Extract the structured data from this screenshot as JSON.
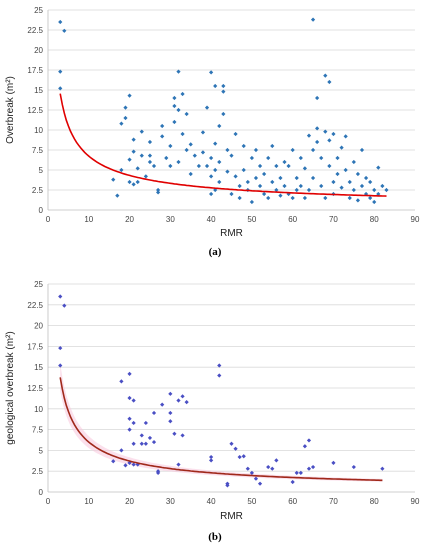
{
  "chart_data": [
    {
      "type": "scatter",
      "panel_label": "(a)",
      "xlabel": "RMR",
      "ylabel": "Overbreak (m²)",
      "xlim": [
        0,
        90
      ],
      "ylim": [
        0,
        25
      ],
      "xticks": [
        0,
        10,
        20,
        30,
        40,
        50,
        60,
        70,
        80,
        90
      ],
      "yticks": [
        0,
        2.5,
        5,
        7.5,
        10,
        12.5,
        15,
        17.5,
        20,
        22.5,
        25
      ],
      "xtick_labels": [
        "0",
        "10",
        "20",
        "30",
        "40",
        "50",
        "60",
        "70",
        "80",
        "90"
      ],
      "ytick_labels": [
        "0",
        "2.5",
        "5",
        "7.5",
        "10",
        "12.5",
        "15",
        "17.5",
        "20",
        "22.5",
        "25"
      ],
      "grid": "horizontal",
      "colors": {
        "points": "#2e75b6",
        "fit": "#e00000"
      },
      "trend": {
        "type": "power",
        "a": 29.4,
        "b": -0.64,
        "x_range": [
          3,
          83
        ]
      },
      "points": [
        [
          3,
          23.5
        ],
        [
          4,
          22.4
        ],
        [
          3,
          17.3
        ],
        [
          3,
          15.2
        ],
        [
          16,
          3.8
        ],
        [
          17,
          1.8
        ],
        [
          18,
          5
        ],
        [
          18,
          10.8
        ],
        [
          19,
          12.8
        ],
        [
          19,
          11.5
        ],
        [
          20,
          14.3
        ],
        [
          20,
          6.3
        ],
        [
          20,
          3.5
        ],
        [
          21,
          8.8
        ],
        [
          21,
          7.3
        ],
        [
          21,
          3.2
        ],
        [
          22,
          3.5
        ],
        [
          22,
          5.2
        ],
        [
          23,
          9.8
        ],
        [
          23,
          6.8
        ],
        [
          24,
          4.2
        ],
        [
          25,
          6
        ],
        [
          25,
          8.5
        ],
        [
          25,
          6.8
        ],
        [
          26,
          5.5
        ],
        [
          27,
          2.5
        ],
        [
          27,
          2.2
        ],
        [
          28,
          10.5
        ],
        [
          28,
          9.2
        ],
        [
          29,
          6.5
        ],
        [
          30,
          8
        ],
        [
          30,
          5.5
        ],
        [
          31,
          14
        ],
        [
          31,
          11
        ],
        [
          31,
          13
        ],
        [
          32,
          17.3
        ],
        [
          32,
          12.5
        ],
        [
          32,
          6
        ],
        [
          33,
          14.5
        ],
        [
          33,
          9.5
        ],
        [
          34,
          7.5
        ],
        [
          34,
          12
        ],
        [
          35,
          8.2
        ],
        [
          35,
          4.5
        ],
        [
          36,
          6.8
        ],
        [
          37,
          5.5
        ],
        [
          38,
          9.7
        ],
        [
          38,
          7.2
        ],
        [
          39,
          5.5
        ],
        [
          39,
          12.8
        ],
        [
          40,
          17.2
        ],
        [
          40,
          2
        ],
        [
          40,
          4.2
        ],
        [
          40,
          6.5
        ],
        [
          41,
          15.5
        ],
        [
          41,
          8.3
        ],
        [
          41,
          5
        ],
        [
          41,
          2.5
        ],
        [
          42,
          3.5
        ],
        [
          42,
          6
        ],
        [
          42,
          10.5
        ],
        [
          43,
          15.5
        ],
        [
          43,
          14.8
        ],
        [
          43,
          12
        ],
        [
          44,
          7.5
        ],
        [
          44,
          4.8
        ],
        [
          45,
          2
        ],
        [
          45,
          6.8
        ],
        [
          46,
          9.5
        ],
        [
          46,
          4.2
        ],
        [
          47,
          3
        ],
        [
          47,
          1.5
        ],
        [
          48,
          5
        ],
        [
          48,
          8
        ],
        [
          49,
          3.5
        ],
        [
          49,
          2.5
        ],
        [
          50,
          6.5
        ],
        [
          50,
          1
        ],
        [
          51,
          4
        ],
        [
          51,
          7.5
        ],
        [
          52,
          3
        ],
        [
          52,
          5.5
        ],
        [
          53,
          2
        ],
        [
          53,
          4.5
        ],
        [
          54,
          6.5
        ],
        [
          54,
          1.5
        ],
        [
          55,
          3.5
        ],
        [
          55,
          8
        ],
        [
          56,
          2.5
        ],
        [
          56,
          5.5
        ],
        [
          57,
          1.8
        ],
        [
          57,
          4
        ],
        [
          58,
          3
        ],
        [
          58,
          6
        ],
        [
          59,
          2
        ],
        [
          59,
          5.5
        ],
        [
          60,
          1.5
        ],
        [
          60,
          7.5
        ],
        [
          61,
          4
        ],
        [
          61,
          2.5
        ],
        [
          62,
          6.5
        ],
        [
          62,
          3
        ],
        [
          63,
          1.5
        ],
        [
          63,
          5.2
        ],
        [
          64,
          2.5
        ],
        [
          64,
          9.3
        ],
        [
          65,
          7.5
        ],
        [
          65,
          4
        ],
        [
          65,
          23.8
        ],
        [
          66,
          14
        ],
        [
          66,
          10.2
        ],
        [
          66,
          8.5
        ],
        [
          67,
          3
        ],
        [
          67,
          6.5
        ],
        [
          68,
          16.8
        ],
        [
          68,
          9.8
        ],
        [
          68,
          1.5
        ],
        [
          69,
          16
        ],
        [
          69,
          5.5
        ],
        [
          69,
          8.7
        ],
        [
          70,
          3.5
        ],
        [
          70,
          2
        ],
        [
          70,
          9.5
        ],
        [
          71,
          6.5
        ],
        [
          71,
          4.5
        ],
        [
          72,
          7.8
        ],
        [
          72,
          2.8
        ],
        [
          73,
          5
        ],
        [
          73,
          9.2
        ],
        [
          74,
          3.5
        ],
        [
          74,
          1.5
        ],
        [
          75,
          6
        ],
        [
          75,
          2.5
        ],
        [
          76,
          4.5
        ],
        [
          76,
          1.2
        ],
        [
          77,
          3
        ],
        [
          77,
          7.5
        ],
        [
          78,
          2
        ],
        [
          78,
          4
        ],
        [
          79,
          1.5
        ],
        [
          79,
          3.5
        ],
        [
          80,
          2.5
        ],
        [
          80,
          1
        ],
        [
          81,
          5.3
        ],
        [
          81,
          2
        ],
        [
          82,
          3
        ],
        [
          83,
          2.5
        ]
      ]
    },
    {
      "type": "scatter",
      "panel_label": "(b)",
      "xlabel": "RMR",
      "ylabel": "geological overbreak (m²)",
      "xlim": [
        0,
        90
      ],
      "ylim": [
        0,
        25
      ],
      "xticks": [
        0,
        10,
        20,
        30,
        40,
        50,
        60,
        70,
        80,
        90
      ],
      "yticks": [
        0,
        2.5,
        5,
        7.5,
        10,
        12.5,
        15,
        17.5,
        20,
        22.5,
        25
      ],
      "xtick_labels": [
        "0",
        "10",
        "20",
        "30",
        "40",
        "50",
        "60",
        "70",
        "80",
        "90"
      ],
      "ytick_labels": [
        "0",
        "2.5",
        "5",
        "7.5",
        "10",
        "12.5",
        "15",
        "17.5",
        "20",
        "22.5",
        "25"
      ],
      "grid": "horizontal",
      "colors": {
        "points": "#4a4fc4",
        "fit": "#a0291b",
        "band": "#f7c6dd"
      },
      "trend": {
        "type": "power",
        "a": 29.4,
        "b": -0.69,
        "x_range": [
          3,
          82
        ]
      },
      "points": [
        [
          3,
          23.5
        ],
        [
          4,
          22.4
        ],
        [
          3,
          17.3
        ],
        [
          3,
          15.2
        ],
        [
          16,
          3.7
        ],
        [
          18,
          13.3
        ],
        [
          18,
          5
        ],
        [
          19,
          3.2
        ],
        [
          20,
          14.2
        ],
        [
          20,
          11.3
        ],
        [
          20,
          8.8
        ],
        [
          20,
          7.5
        ],
        [
          20,
          3.5
        ],
        [
          21,
          11
        ],
        [
          21,
          8.3
        ],
        [
          21,
          5.8
        ],
        [
          21,
          3.3
        ],
        [
          22,
          3.3
        ],
        [
          23,
          5.8
        ],
        [
          23,
          6.8
        ],
        [
          24,
          8.3
        ],
        [
          24,
          5.8
        ],
        [
          25,
          6.5
        ],
        [
          26,
          9.5
        ],
        [
          26,
          6
        ],
        [
          27,
          2.5
        ],
        [
          27,
          2.3
        ],
        [
          28,
          10.5
        ],
        [
          30,
          11.8
        ],
        [
          30,
          9.5
        ],
        [
          30,
          8.5
        ],
        [
          31,
          7
        ],
        [
          32,
          11
        ],
        [
          32,
          3.3
        ],
        [
          33,
          11.5
        ],
        [
          33,
          6.8
        ],
        [
          34,
          10.8
        ],
        [
          40,
          4.2
        ],
        [
          40,
          3.8
        ],
        [
          42,
          15.2
        ],
        [
          42,
          14
        ],
        [
          44,
          1
        ],
        [
          44,
          0.8
        ],
        [
          45,
          5.8
        ],
        [
          46,
          5.2
        ],
        [
          47,
          4.2
        ],
        [
          48,
          4.3
        ],
        [
          49,
          2.8
        ],
        [
          50,
          2.3
        ],
        [
          51,
          1.6
        ],
        [
          52,
          1
        ],
        [
          54,
          3
        ],
        [
          55,
          2.8
        ],
        [
          56,
          3.8
        ],
        [
          60,
          1.2
        ],
        [
          61,
          2.3
        ],
        [
          62,
          2.3
        ],
        [
          63,
          5.5
        ],
        [
          64,
          6.2
        ],
        [
          64,
          2.8
        ],
        [
          65,
          3
        ],
        [
          70,
          3.5
        ],
        [
          75,
          3
        ],
        [
          82,
          2.8
        ]
      ]
    }
  ]
}
